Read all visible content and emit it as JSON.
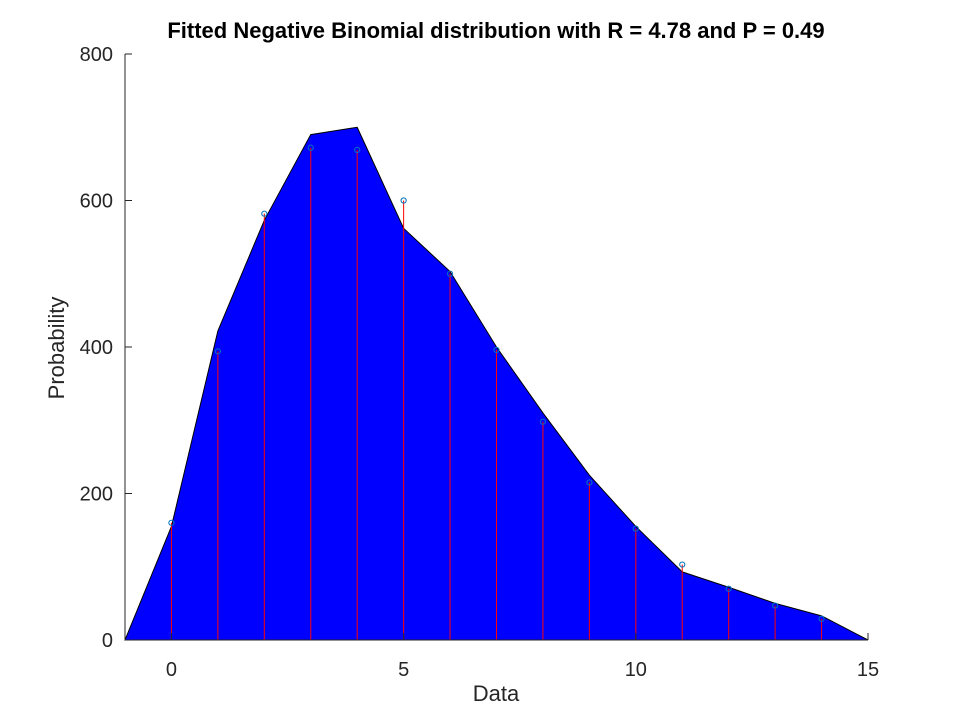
{
  "chart_data": {
    "type": "area",
    "title": "Fitted Negative Binomial distribution with R = 4.78 and P = 0.49",
    "xlabel": "Data",
    "ylabel": "Probability",
    "xlim": [
      -1,
      15
    ],
    "ylim": [
      0,
      800
    ],
    "x_ticks": [
      0,
      5,
      10,
      15
    ],
    "y_ticks": [
      0,
      200,
      400,
      600,
      800
    ],
    "grid": false,
    "fitted_curve": {
      "x": [
        -1,
        0,
        1,
        2,
        3,
        4,
        5,
        6,
        7,
        8,
        9,
        10,
        11,
        12,
        13,
        14,
        15
      ],
      "y": [
        0,
        155,
        422,
        573,
        690,
        700,
        562,
        503,
        400,
        310,
        225,
        155,
        93,
        72,
        50,
        33,
        0
      ]
    },
    "observed": {
      "x": [
        0,
        1,
        2,
        3,
        4,
        5,
        6,
        7,
        8,
        9,
        10,
        11,
        12,
        13,
        14
      ],
      "y": [
        160,
        394,
        582,
        672,
        669,
        600,
        500,
        396,
        298,
        215,
        152,
        103,
        70,
        47,
        29
      ]
    },
    "colors": {
      "fill": "#0000ff",
      "stems": "#ff0000",
      "markers": "#0072bd",
      "axes": "#262626"
    }
  }
}
